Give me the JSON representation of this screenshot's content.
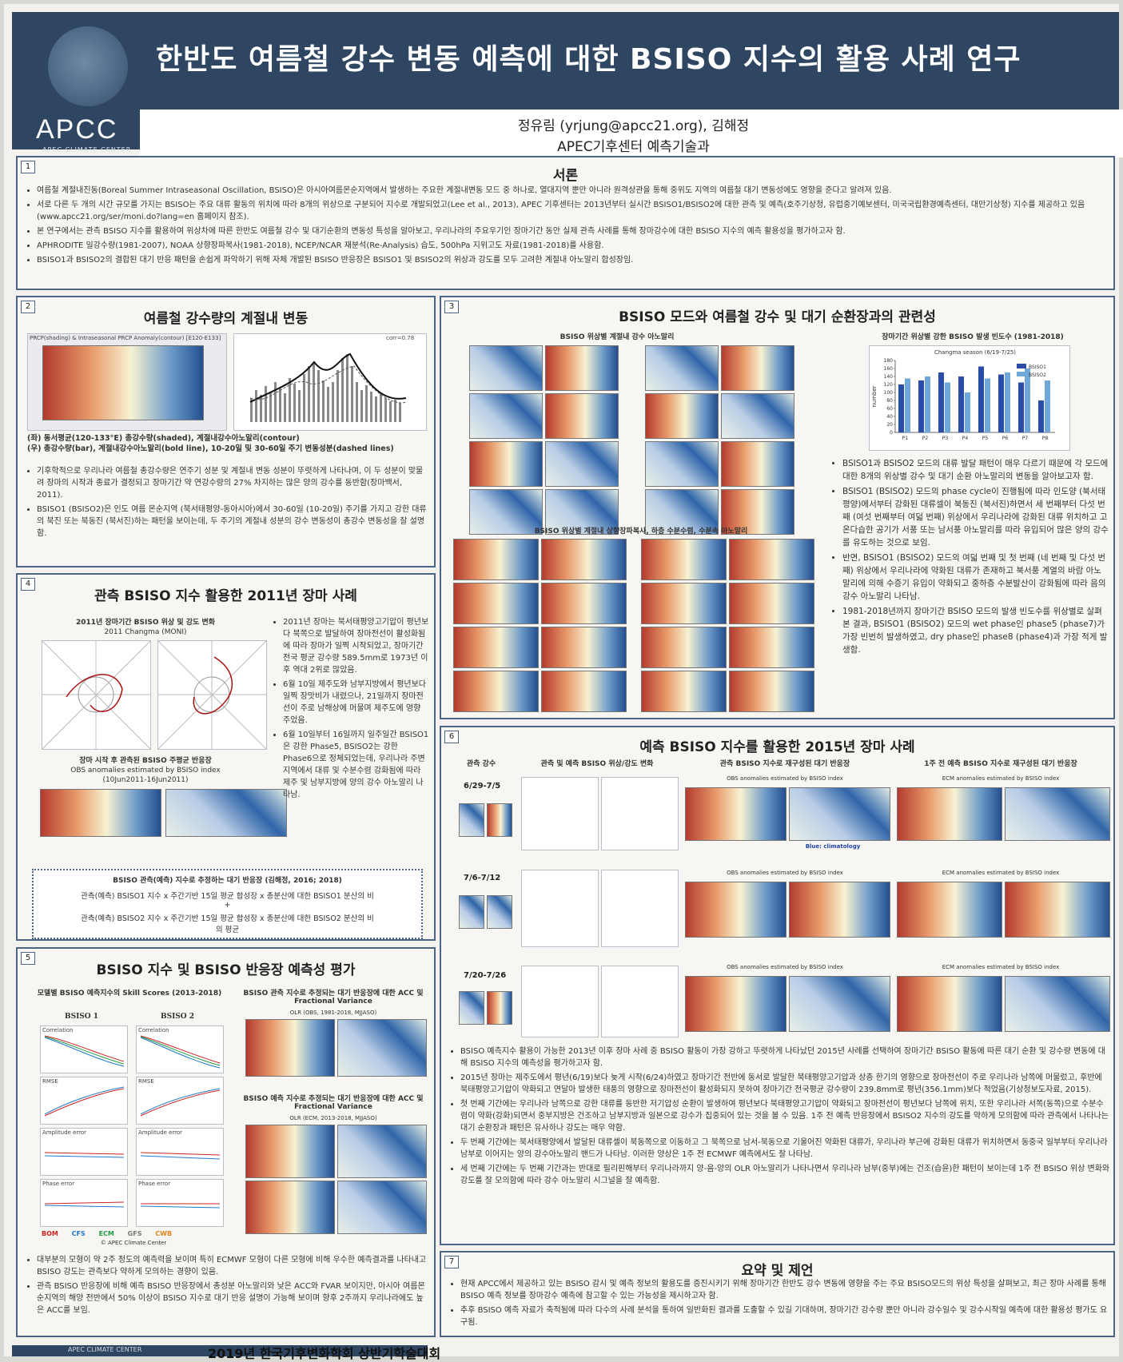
{
  "header": {
    "logo_text": "APCC",
    "logo_subtitle": "APEC CLIMATE CENTER",
    "title": "한반도 여름철 강수 변동 예측에 대한 BSISO 지수의 활용 사례 연구",
    "authors": "정유림 (yrjung@apcc21.org), 김해정",
    "affiliation": "APEC기후센터 예측기술과"
  },
  "s1": {
    "num": "1",
    "title": "서론",
    "bullets": [
      "여름철 계절내진동(Boreal Summer Intraseasonal Oscillation, BSISO)은 아시아여름몬순지역에서 발생하는 주요한 계절내변동 모드 중 하나로, 열대지역 뿐만 아니라 원격상관을 통해 중위도 지역의 여름철 대기 변동성에도 영향을 준다고 알려져 있음.",
      "서로 다른 두 개의 시간 규모를 가지는 BSISO는 주요 대류 활동의 위치에 따라 8개의 위상으로 구분되어 지수로 개발되었고(Lee et al., 2013), APEC 기후센터는 2013년부터 실시간 BSISO1/BSISO2에 대한 관측 및 예측(호주기상청, 유럽중기예보센터, 미국국립환경예측센터, 대만기상청) 지수를 제공하고 있음(www.apcc21.org/ser/moni.do?lang=en 홈페이지 참조).",
      "본 연구에서는 관측 BSISO 지수를 활용하여 위상차에 따른 한반도 여름철 강수 및 대기순환의 변동성 특성을 알아보고, 우리나라의 주요우기인 장마기간 동안 실제 관측 사례를 통해 장마강수에 대한 BSISO 지수의 예측 활용성을 평가하고자 함.",
      "APHRODITE 일강수량(1981-2007), NOAA 상향장파복사(1981-2018), NCEP/NCAR 재분석(Re-Analysis) 습도, 500hPa 지위고도 자료(1981-2018)를 사용함.",
      "BSISO1과 BSISO2의 결합된 대기 반응 패턴을 손쉽게 파악하기 위해 자체 개발된 BSISO 반응장은 BSISO1 및 BSISO2의 위상과 강도를 모두 고려한 계절내 아노말리 합성장임."
    ]
  },
  "s2": {
    "num": "2",
    "title": "여름철 강수량의 계절내 변동",
    "fig_left_caption": "PRCP(shading) & Intraseasonal PRCP Anomaly(contour) [E120-E133]",
    "fig_right_caption": "corr=0.78",
    "fig_note_1": "(좌) 동서평균(120-133°E) 총강수량(shaded), 계절내강수아노말리(contour)",
    "fig_note_2": "(우) 총강수량(bar), 계절내강수아노말리(bold line), 10-20일 및 30-60일 주기 변동성분(dashed lines)",
    "bullets": [
      "기후학적으로 우리나라 여름철 총강수량은 연주기 성분 및 계절내 변동 성분이 뚜렷하게 나타나며, 이 두 성분이 맞물려 장마의 시작과 종료가 결정되고 장마기간 약 연강수량의 27% 차지하는 많은 양의 강수를 동반함(장마백서, 2011).",
      "BSISO1 (BSISO2)은 인도 여름 몬순지역 (북서태평양-동아시아)에서 30-60일 (10-20일) 주기를 가지고 강한 대류의 북진 또는 북동진 (북서진)하는 패턴을 보이는데, 두 주기의 계절내 성분의 강수 변동성이 총강수 변동성을 잘 설명함."
    ]
  },
  "s3": {
    "num": "3",
    "title": "BSISO 모드와 여름철 강수 및 대기 순환장과의 관련성",
    "fig1_title": "BSISO 위상별 계절내 강수 아노말리",
    "fig2_title": "장마기간 위상별 강한 BSISO 발생 빈도수 (1981-2018)",
    "fig3_title": "BSISO 위상별 계절내 상향장파복사, 하층 수분수렴, 수분속 아노말리",
    "bullets": [
      "BSISO1과 BSISO2 모드의 대류 발달 패턴이 매우 다르기 때문에 각 모드에 대한 8개의 위상별 강수 및 대기 순환 아노말리의 변동을 알아보고자 함.",
      "BSISO1 (BSISO2) 모드의 phase cycle이 진행됨에 따라 인도양 (북서태평양)에서부터 강화된 대류셀이 북동진 (북서진)하면서 세 번째부터 다섯 번째 (여섯 번째부터 여덟 번째) 위상에서 우리나라에 강화된 대류 위치하고 고온다습한 공기가 서풍 또는 남서풍 아노말리를 따라 유입되어 많은 양의 강수를 유도하는 것으로 보임.",
      "반면, BSISO1 (BSISO2) 모드의 여덟 번째 및 첫 번째 (네 번째 및 다섯 번째) 위상에서 우리나라에 약화된 대류가 존재하고 북서풍 계열의 바람 아노말리에 의해 수증기 유입이 약화되고 중하층 수분발산이 강화됨에 따라 음의 강수 아노말리 나타남.",
      "1981-2018년까지 장마기간 BSISO 모드의 발생 빈도수를 위상별로 살펴본 결과, BSISO1 (BSISO2) 모드의 wet phase인 phase5 (phase7)가 가장 빈번히 발생하였고, dry phase인 phase8 (phase4)과 가장 적게 발생함."
    ]
  },
  "s4": {
    "num": "4",
    "title": "관측 BSISO 지수 활용한 2011년 장마 사례",
    "fig1_title": "2011년 장마기간 BSISO 위상 및 강도 변화",
    "fig1_sub": "2011 Changma (MONI)",
    "fig2_title": "장마 시작 후 관측된 BSISO 주평균 반응장",
    "fig2_sub": "OBS anomalies estimated by BSISO index",
    "fig2_date": "(10Jun2011-16Jun2011)",
    "bullets": [
      "2011년 장마는 북서태평양고기압이 평년보다 북쪽으로 발달하여 장마전선이 활성화됨에 따라 장마가 일찍 시작되었고, 장마기간 전국 평균 강수량 589.5mm로 1973년 이후 역대 2위로 많았음.",
      "6월 10일 제주도와 남부지방에서 평년보다 일찍 장맛비가 내렸으나, 21일까지 장마전선이 주로 남해상에 머물며 제주도에 영향 주었음.",
      "6월 10일부터 16일까지 일주일간 BSISO1은 강한 Phase5, BSISO2는 강한 Phase6으로 정체되었는데, 우리나라 주변 지역에서 대류 및 수분수렴 강화됨에 따라 제주 및 남부지방에 양의 강수 아노말리 나타남."
    ],
    "box_title": "BSISO 관측(예측) 지수로 추정하는 대기 반응장 (김해정, 2016; 2018)",
    "box_line1": "관측(예측) BSISO1 지수 x 주간기반 15일 평균 합성장 x 총분산에 대한 BSISO1 분산의 비",
    "box_plus": "+",
    "box_line2": "관측(예측) BSISO2 지수 x 주간기반 15일 평균 합성장 x 총분산에 대한 BSISO2 분산의 비",
    "box_line3": "의 평균"
  },
  "s5": {
    "num": "5",
    "title": "BSISO 지수 및 BSISO 반응장 예측성 평가",
    "fig1_title": "모델별 BSISO 예측지수의 Skill Scores (2013-2018)",
    "col1": "BSISO 1",
    "col2": "BSISO 2",
    "panels": [
      "Correlation",
      "Correlation",
      "RMSE",
      "RMSE",
      "Amplitude error",
      "Amplitude error",
      "Phase error",
      "Phase error"
    ],
    "legend": [
      "BOM",
      "CFS",
      "ECM",
      "GFS",
      "CWB"
    ],
    "legend_colors": [
      "#cc2222",
      "#2277cc",
      "#229944",
      "#777777",
      "#dd8822"
    ],
    "legend_source": "© APEC Climate Center",
    "fig2_title": "BSISO 관측 지수로 추정되는 대기 반응장에 대한 ACC 및 Fractional Variance",
    "fig2_sub": "OLR (OBS, 1981-2018, MJJASO)",
    "fig3_title": "BSISO 예측 지수로 추정되는 대기 반응장에 대한 ACC 및 Fractional Variance",
    "fig3_sub": "OLR (ECM, 2013-2018, MJJASO)",
    "bullets": [
      "대부분의 모형이 약 2주 정도의 예측력을 보이며 특히 ECMWF 모형이 다른 모형에 비해 우수한 예측결과를 나타내고 BSISO 강도는 관측보다 약하게 모의하는 경향이 있음.",
      "관측 BSISO 반응장에 비해 예측 BSISO 반응장에서 총성분 아노말리와 낮은 ACC와 FVAR 보이지만, 아시아 여름몬순지역의 해양 전반에서 50% 이상이 BSISO 지수로 대기 반응 설명이 가능해 보이며 향후 2주까지 우리나라에도 높은 ACC를 보임."
    ]
  },
  "s6": {
    "num": "6",
    "title": "예측 BSISO 지수를 활용한 2015년 장마 사례",
    "col_heads": [
      "관측 강수",
      "관측 및 예측 BSISO 위상/강도 변화",
      "관측 BSISO 지수로 재구성된 대기 반응장",
      "1주 전 예측 BSISO 지수로 재구성된 대기 반응장"
    ],
    "periods": [
      "6/29-7/5",
      "7/6-7/12",
      "7/20-7/26"
    ],
    "obs_titles": [
      "OBS anomalies estimated by BSISO index",
      "OBS anomalies estimated by BSISO index",
      "OBS anomalies estimated by BSISO index"
    ],
    "fcst_titles": [
      "ECM anomalies estimated by BSISO index",
      "ECM anomalies estimated by BSISO index",
      "ECM anomalies estimated by BSISO index"
    ],
    "blue_note": "Blue: climatology",
    "bullets": [
      "BSISO 예측지수 활용이 가능한 2013년 이후 장마 사례 중 BSISO 활동이 가장 강하고 뚜렷하게 나타났던 2015년 사례를 선택하여 장마기간 BSISO 활동에 따른 대기 순환 및 강수량 변동에 대해 BSISO 지수의 예측성을 평가하고자 함.",
      "2015년 장마는 제주도에서 평년(6/19)보다 늦게 시작(6/24)하였고 장마기간 전반에 동서로 발달한 북태평양고기압과 상층 한기의 영향으로 장마전선이 주로 우리나라 남쪽에 머물렀고, 후반에 북태평양고기압이 약화되고 연달아 발생한 태풍의 영향으로 장마전선이 활성화되지 못하여 장마기간 전국평균 강수량이 239.8mm로 평년(356.1mm)보다 적었음(기상청보도자료, 2015).",
      "첫 번째 기간에는 우리나라 남쪽으로 강한 대류를 동반한 저기압성 순환이 발생하여 평년보다 북태평양고기압이 약화되고 장마전선이 평년보다 남쪽에 위치, 또한 우리나라 서쪽(동쪽)으로 수분수렴이 약화(강화)되면서 중부지방은 건조하고 남부지방과 일본으로 강수가 집중되어 있는 것을 볼 수 있음. 1주 전 예측 반응장에서 BSISO2 지수의 강도를 약하게 모의함에 따라 관측에서 나타나는 대기 순환장과 패턴은 유사하나 강도는 매우 약함.",
      "두 번째 기간에는 북서태평양에서 발달된 대류셀이 북동쪽으로 이동하고 그 북쪽으로 남서-북동으로 기울어진 약화된 대류가, 우리나라 부근에 강화된 대류가 위치하면서 동중국 일부부터 우리나라 남부로 이어지는 양의 강수아노말리 밴드가 나타남. 이러한 양상은 1주 전 ECMWF 예측에서도 잘 나타남.",
      "세 번째 기간에는 두 번째 기간과는 반대로 필리핀해부터 우리나라까지 양-음-양의 OLR 아노말리가 나타나면서 우리나라 남부(중부)에는 건조(습윤)한 패턴이 보이는데 1주 전 BSISO 위상 변화와 강도를 잘 모의함에 따라 강수 아노말리 시그널을 잘 예측함."
    ]
  },
  "s7": {
    "num": "7",
    "title": "요약 및 제언",
    "bullets": [
      "현재 APCC에서 제공하고 있는 BSISO 감시 및 예측 정보의 활용도를 증진시키기 위해 장마기간 한반도 강수 변동에 영향을 주는 주요 BSISO모드의 위상 특성을 살펴보고, 최근 장마 사례를 통해 BSISO 예측 정보를 장마강수 예측에 참고할 수 있는 가능성을 제시하고자 함.",
      "추후 BSISO 예측 자료가 축적됨에 따라 다수의 사례 분석을 통하여 일반화된 결과를 도출할 수 있길 기대하며, 장마기간 강수량 뿐만 아니라 강수일수 및 강수시작일 예측에 대한 활용성 평가도 요구됨."
    ]
  },
  "footer": {
    "brand": "APEC CLIMATE CENTER",
    "conference": "2019년 한국기후변화학회 상반기학술대회"
  },
  "chart_data": {
    "type": "bar",
    "title": "Changma season (6/19-7/25)",
    "categories": [
      "P1",
      "P2",
      "P3",
      "P4",
      "P5",
      "P6",
      "P7",
      "P8"
    ],
    "ylabel": "number",
    "ylim": [
      0,
      180
    ],
    "series": [
      {
        "name": "BSISO1",
        "values": [
          120,
          130,
          150,
          140,
          165,
          145,
          125,
          80
        ]
      },
      {
        "name": "BSISO2",
        "values": [
          135,
          140,
          125,
          100,
          135,
          150,
          160,
          130
        ]
      }
    ],
    "colors": [
      "#2a4ea8",
      "#6fa8d8"
    ],
    "legend": "top-right"
  }
}
